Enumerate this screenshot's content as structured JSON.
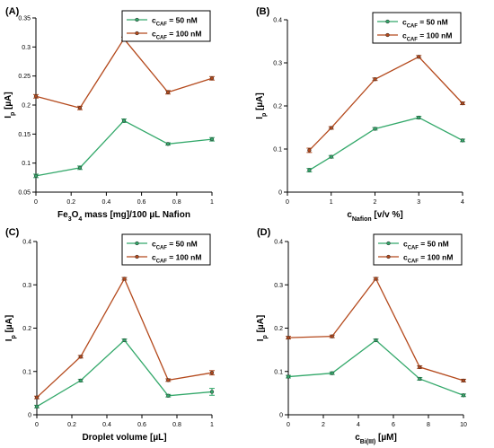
{
  "colors": {
    "c50": "#33a86a",
    "c100": "#b4491c",
    "axis": "#000000"
  },
  "chart_data": [
    {
      "panel_label": "(A)",
      "type": "line",
      "xlabel_parts": [
        "Fe",
        "3",
        "O",
        "4",
        " mass [mg]/100 µL Nafion"
      ],
      "ylabel_parts": [
        "I",
        "p",
        " [µA]"
      ],
      "xlim": [
        0,
        1
      ],
      "ylim": [
        0.05,
        0.35
      ],
      "xticks": [
        0,
        0.2,
        0.4,
        0.6,
        0.8,
        1
      ],
      "xtick_labels": [
        "0",
        "0.2",
        "0.4",
        "0.6",
        "0.8",
        "1"
      ],
      "yticks": [
        0.05,
        0.1,
        0.15,
        0.2,
        0.25,
        0.3,
        0.35
      ],
      "ytick_labels": [
        "0.05",
        "0.1",
        "0.15",
        "0.2",
        "0.25",
        "0.3",
        "0.35"
      ],
      "legend_position": "top-right",
      "series": [
        {
          "name_main": "c",
          "name_sub": "CAF",
          "name_rest": " = 50 nM",
          "color_key": "c50",
          "x": [
            0,
            0.25,
            0.5,
            0.75,
            1
          ],
          "y": [
            0.078,
            0.092,
            0.173,
            0.133,
            0.141
          ],
          "err": [
            0.003,
            0.003,
            0.003,
            0.002,
            0.003
          ]
        },
        {
          "name_main": "c",
          "name_sub": "CAF",
          "name_rest": " = 100 nM",
          "color_key": "c100",
          "x": [
            0,
            0.25,
            0.5,
            0.75,
            1
          ],
          "y": [
            0.215,
            0.195,
            0.314,
            0.222,
            0.246
          ],
          "err": [
            0.003,
            0.003,
            0.003,
            0.003,
            0.003
          ]
        }
      ]
    },
    {
      "panel_label": "(B)",
      "type": "line",
      "xlabel_parts": [
        "c",
        "Nafion",
        " [v/v %]"
      ],
      "ylabel_parts": [
        "I",
        "p",
        " [µA]"
      ],
      "xlim": [
        0,
        4
      ],
      "ylim": [
        0,
        0.4
      ],
      "xticks": [
        0,
        1,
        2,
        3,
        4
      ],
      "xtick_labels": [
        "0",
        "1",
        "2",
        "3",
        "4"
      ],
      "yticks": [
        0,
        0.1,
        0.2,
        0.3,
        0.4
      ],
      "ytick_labels": [
        "0",
        "0.1",
        "0.2",
        "0.3",
        "0.4"
      ],
      "legend_position": "top-right",
      "series": [
        {
          "name_main": "c",
          "name_sub": "CAF",
          "name_rest": " = 50 nM",
          "color_key": "c50",
          "x": [
            0.5,
            1,
            2,
            3,
            4
          ],
          "y": [
            0.051,
            0.082,
            0.147,
            0.173,
            0.12
          ],
          "err": [
            0.004,
            0.003,
            0.003,
            0.003,
            0.003
          ]
        },
        {
          "name_main": "c",
          "name_sub": "CAF",
          "name_rest": " = 100 nM",
          "color_key": "c100",
          "x": [
            0.5,
            1,
            2,
            3,
            4
          ],
          "y": [
            0.097,
            0.149,
            0.262,
            0.314,
            0.206
          ],
          "err": [
            0.005,
            0.003,
            0.003,
            0.003,
            0.003
          ]
        }
      ]
    },
    {
      "panel_label": "(C)",
      "type": "line",
      "xlabel_parts": [
        "Droplet volume [µL]"
      ],
      "ylabel_parts": [
        "I",
        "p",
        " [µA]"
      ],
      "xlim": [
        0,
        1
      ],
      "ylim": [
        0,
        0.4
      ],
      "xticks": [
        0,
        0.2,
        0.4,
        0.6,
        0.8,
        1
      ],
      "xtick_labels": [
        "0",
        "0.2",
        "0.4",
        "0.6",
        "0.8",
        "1"
      ],
      "yticks": [
        0,
        0.1,
        0.2,
        0.3,
        0.4
      ],
      "ytick_labels": [
        "0",
        "0.1",
        "0.2",
        "0.3",
        "0.4"
      ],
      "legend_position": "top-right",
      "series": [
        {
          "name_main": "c",
          "name_sub": "CAF",
          "name_rest": " = 50 nM",
          "color_key": "c50",
          "x": [
            0,
            0.25,
            0.5,
            0.75,
            1
          ],
          "y": [
            0.019,
            0.079,
            0.172,
            0.044,
            0.053
          ],
          "err": [
            0.003,
            0.003,
            0.003,
            0.003,
            0.008
          ]
        },
        {
          "name_main": "c",
          "name_sub": "CAF",
          "name_rest": " = 100 nM",
          "color_key": "c100",
          "x": [
            0,
            0.25,
            0.5,
            0.75,
            1
          ],
          "y": [
            0.04,
            0.134,
            0.314,
            0.08,
            0.097
          ],
          "err": [
            0.003,
            0.003,
            0.003,
            0.003,
            0.005
          ]
        }
      ]
    },
    {
      "panel_label": "(D)",
      "type": "line",
      "xlabel_parts": [
        "c",
        "Bi(III)",
        " [µM]"
      ],
      "ylabel_parts": [
        "I",
        "p",
        " [µA]"
      ],
      "xlim": [
        0,
        10
      ],
      "ylim": [
        0,
        0.4
      ],
      "xticks": [
        0,
        2,
        4,
        6,
        8,
        10
      ],
      "xtick_labels": [
        "0",
        "2",
        "4",
        "6",
        "8",
        "10"
      ],
      "yticks": [
        0,
        0.1,
        0.2,
        0.3,
        0.4
      ],
      "ytick_labels": [
        "0",
        "0.1",
        "0.2",
        "0.3",
        "0.4"
      ],
      "legend_position": "top-right",
      "series": [
        {
          "name_main": "c",
          "name_sub": "CAF",
          "name_rest": " = 50 nM",
          "color_key": "c50",
          "x": [
            0,
            2.5,
            5,
            7.5,
            10
          ],
          "y": [
            0.088,
            0.096,
            0.172,
            0.083,
            0.045
          ],
          "err": [
            0.003,
            0.003,
            0.003,
            0.003,
            0.003
          ]
        },
        {
          "name_main": "c",
          "name_sub": "CAF",
          "name_rest": " = 100 nM",
          "color_key": "c100",
          "x": [
            0,
            2.5,
            5,
            7.5,
            10
          ],
          "y": [
            0.178,
            0.181,
            0.314,
            0.11,
            0.079
          ],
          "err": [
            0.003,
            0.003,
            0.003,
            0.003,
            0.003
          ]
        }
      ]
    }
  ]
}
